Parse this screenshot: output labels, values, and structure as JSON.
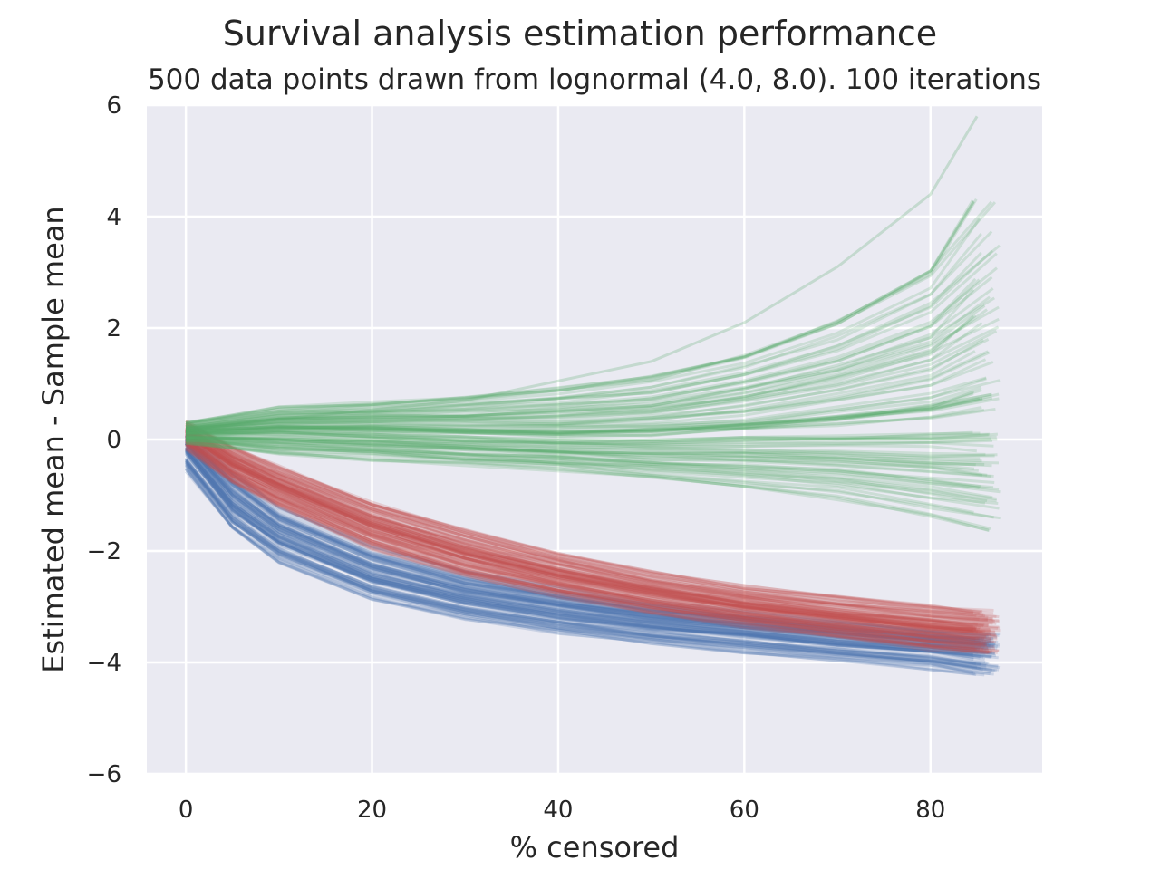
{
  "chart_data": {
    "type": "line",
    "title": "Survival analysis estimation performance",
    "subtitle": "500 data points drawn from lognormal (4.0, 8.0). 100 iterations",
    "xlabel": "% censored",
    "ylabel": "Estimated mean - Sample mean",
    "xlim": [
      -4.2,
      92
    ],
    "ylim": [
      -6,
      6
    ],
    "x_ticks": [
      0,
      20,
      40,
      60,
      80
    ],
    "x_tick_labels": [
      "0",
      "20",
      "40",
      "60",
      "80"
    ],
    "y_ticks": [
      -6,
      -4,
      -2,
      0,
      2,
      4,
      6
    ],
    "y_tick_labels": [
      "−6",
      "−4",
      "−2",
      "0",
      "2",
      "4",
      "6"
    ],
    "grid": true,
    "lines_per_series": 100,
    "series": [
      {
        "color": "#4c72b0",
        "x": [
          0,
          5,
          10,
          20,
          30,
          40,
          50,
          60,
          70,
          80,
          86
        ],
        "median": [
          -0.1,
          -1.1,
          -1.7,
          -2.4,
          -2.8,
          -3.05,
          -3.25,
          -3.4,
          -3.55,
          -3.68,
          -3.75
        ],
        "low": [
          -0.55,
          -1.6,
          -2.2,
          -2.85,
          -3.2,
          -3.45,
          -3.65,
          -3.8,
          -3.95,
          -4.1,
          -4.25
        ],
        "high": [
          0.15,
          -0.55,
          -1.2,
          -1.9,
          -2.35,
          -2.65,
          -2.9,
          -3.1,
          -3.25,
          -3.4,
          -3.5
        ]
      },
      {
        "color": "#c44e52",
        "x": [
          0,
          5,
          10,
          20,
          30,
          40,
          50,
          60,
          70,
          80,
          86
        ],
        "median": [
          0.1,
          -0.45,
          -0.85,
          -1.55,
          -2.05,
          -2.45,
          -2.75,
          -3.0,
          -3.2,
          -3.38,
          -3.45
        ],
        "low": [
          -0.15,
          -0.75,
          -1.2,
          -1.95,
          -2.45,
          -2.8,
          -3.1,
          -3.35,
          -3.55,
          -3.75,
          -3.85
        ],
        "high": [
          0.3,
          -0.15,
          -0.5,
          -1.15,
          -1.65,
          -2.05,
          -2.4,
          -2.65,
          -2.85,
          -3.0,
          -3.1
        ]
      },
      {
        "color": "#55a868",
        "x": [
          0,
          10,
          20,
          30,
          40,
          50,
          60,
          70,
          80,
          86
        ],
        "median": [
          0.1,
          0.15,
          0.12,
          0.05,
          0.0,
          0.0,
          0.05,
          0.1,
          0.15,
          0.2
        ],
        "low": [
          -0.05,
          -0.25,
          -0.35,
          -0.45,
          -0.55,
          -0.7,
          -0.85,
          -1.05,
          -1.35,
          -1.6
        ],
        "high": [
          0.3,
          0.55,
          0.65,
          0.75,
          0.9,
          1.1,
          1.5,
          2.1,
          3.0,
          4.3
        ],
        "extreme": {
          "x": [
            0,
            30,
            50,
            60,
            70,
            80,
            85
          ],
          "y": [
            0.2,
            0.7,
            1.4,
            2.1,
            3.1,
            4.4,
            5.8
          ]
        }
      }
    ]
  }
}
